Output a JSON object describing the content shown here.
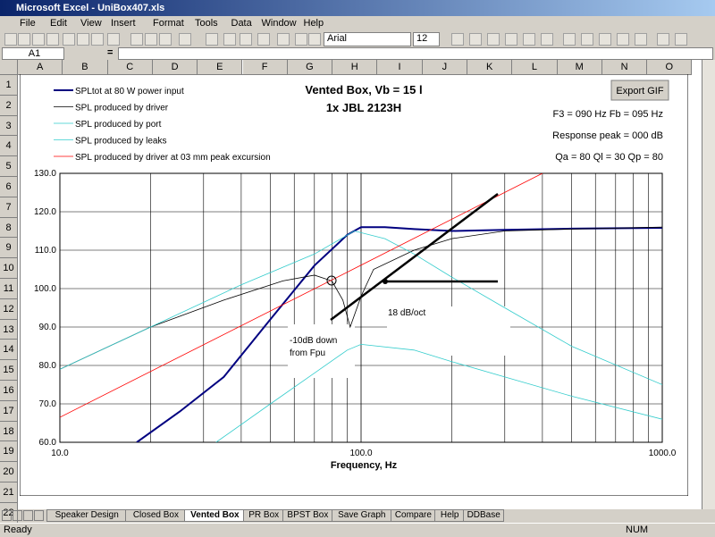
{
  "window": {
    "title": "Microsoft Excel - UniBox407.xls"
  },
  "menu": [
    "File",
    "Edit",
    "View",
    "Insert",
    "Format",
    "Tools",
    "Data",
    "Window",
    "Help"
  ],
  "toolbar": {
    "font": "Arial",
    "size": "12"
  },
  "formula_bar": {
    "name_box": "A1",
    "equals": "="
  },
  "columns": [
    "A",
    "B",
    "C",
    "D",
    "E",
    "F",
    "G",
    "H",
    "I",
    "J",
    "K",
    "L",
    "M",
    "N",
    "O"
  ],
  "rows": [
    1,
    2,
    3,
    4,
    5,
    6,
    7,
    8,
    9,
    10,
    11,
    12,
    13,
    14,
    15,
    16,
    17,
    18,
    19,
    20,
    21,
    22
  ],
  "chart_data": {
    "type": "line",
    "title": "Vented Box, Vb = 15 l",
    "subtitle": "1x JBL 2123H",
    "x_label": "Frequency, Hz",
    "button": "Export GIF",
    "info": [
      "F3 = 090 Hz  Fb = 095 Hz",
      "Response peak = 000 dB",
      "Qa = 80  Ql = 30  Qp = 80"
    ],
    "annotations": [
      "-10dB down",
      "from Fpu",
      "18 dB/oct"
    ],
    "xscale": "log",
    "xlim": [
      10,
      1000
    ],
    "xticks": [
      {
        "value": 10,
        "label": "10.0"
      },
      {
        "value": 100,
        "label": "100.0"
      },
      {
        "value": 1000,
        "label": "1000.0"
      }
    ],
    "xminorticks": [
      20,
      30,
      40,
      50,
      60,
      70,
      80,
      90,
      200,
      300,
      400,
      500,
      600,
      700,
      800,
      900
    ],
    "ylim": [
      60,
      130
    ],
    "yticks": [
      {
        "value": 60,
        "label": "60.0"
      },
      {
        "value": 70,
        "label": "70.0"
      },
      {
        "value": 80,
        "label": "80.0"
      },
      {
        "value": 90,
        "label": "90.0"
      },
      {
        "value": 100,
        "label": "100.0"
      },
      {
        "value": 110,
        "label": "110.0"
      },
      {
        "value": 120,
        "label": "120.0"
      },
      {
        "value": 130,
        "label": "130.0"
      }
    ],
    "grid": true,
    "series": [
      {
        "name": "SPLtot at 80 W power input",
        "color": "#000080",
        "width": 2,
        "x": [
          18,
          25,
          35,
          50,
          70,
          90,
          100,
          120,
          150,
          200,
          300,
          500,
          1000
        ],
        "values": [
          60,
          68,
          77,
          92,
          106,
          114,
          116,
          116,
          115.5,
          115,
          115.3,
          115.6,
          115.8
        ]
      },
      {
        "name": "SPL produced by driver",
        "color": "#000000",
        "width": 0.8,
        "x": [
          10,
          20,
          35,
          55,
          70,
          80,
          87,
          92,
          100,
          110,
          150,
          200,
          300,
          500,
          1000
        ],
        "values": [
          79,
          90,
          97,
          102,
          103.5,
          102,
          97,
          90,
          98,
          105,
          110,
          113,
          115,
          115.5,
          116
        ]
      },
      {
        "name": "SPL produced by port",
        "color": "#33cccc",
        "width": 0.8,
        "x": [
          33,
          50,
          70,
          90,
          100,
          150,
          200,
          300,
          500,
          1000
        ],
        "values": [
          60,
          70,
          78,
          84,
          85.5,
          84,
          81,
          77,
          72,
          66
        ]
      },
      {
        "name": "SPL produced by leaks",
        "color": "#33cccc",
        "width": 0.8,
        "x": [
          10,
          20,
          40,
          70,
          95,
          120,
          150,
          200,
          300,
          500,
          1000
        ],
        "values": [
          79,
          90,
          101,
          109,
          115,
          113,
          109,
          103,
          95,
          85,
          75
        ]
      },
      {
        "name": "SPL produced by driver at 03 mm peak excursion",
        "color": "#ff0000",
        "width": 0.8,
        "x": [
          10,
          100,
          400
        ],
        "values": [
          66.5,
          106.1,
          130
        ]
      }
    ]
  },
  "sheet_tabs": [
    "Speaker Design",
    "Closed Box",
    "Vented Box",
    "PR Box",
    "BPST Box",
    "Save Graph",
    "Compare",
    "Help",
    "DDBase"
  ],
  "active_tab": 2,
  "status": {
    "left": "Ready",
    "right": "NUM"
  }
}
